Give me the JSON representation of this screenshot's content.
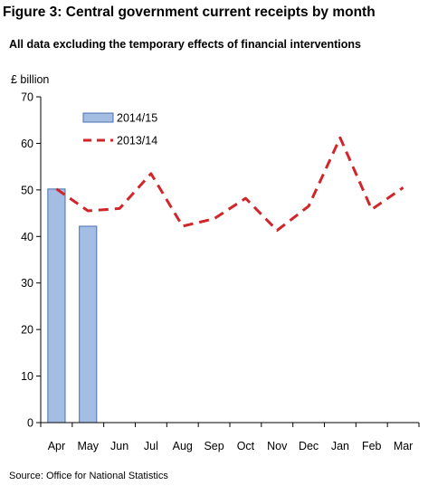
{
  "figure": {
    "title": "Figure 3: Central government current receipts by month",
    "subtitle": "All data excluding the temporary effects of financial interventions",
    "source": "Source: Office for National Statistics"
  },
  "colors": {
    "bar_fill": "#a4bde3",
    "bar_stroke": "#4a70b0",
    "line": "#d1252a",
    "axis": "#000000"
  },
  "chart_data": {
    "type": "bar",
    "ylabel": "£ billion",
    "xlabel": "",
    "ylim": [
      0,
      70
    ],
    "yticks": [
      0,
      10,
      20,
      30,
      40,
      50,
      60,
      70
    ],
    "grid": false,
    "legend_position": "top-left",
    "categories": [
      "Apr",
      "May",
      "Jun",
      "Jul",
      "Aug",
      "Sep",
      "Oct",
      "Nov",
      "Dec",
      "Jan",
      "Feb",
      "Mar"
    ],
    "series": [
      {
        "name": "2014/15",
        "type": "bar",
        "values": [
          50.2,
          42.2,
          null,
          null,
          null,
          null,
          null,
          null,
          null,
          null,
          null,
          null
        ]
      },
      {
        "name": "2013/14",
        "type": "line",
        "style": "dashed",
        "values": [
          50.2,
          45.5,
          46.0,
          53.5,
          42.2,
          43.8,
          48.2,
          41.3,
          46.5,
          61.2,
          45.8,
          50.5
        ]
      }
    ]
  }
}
